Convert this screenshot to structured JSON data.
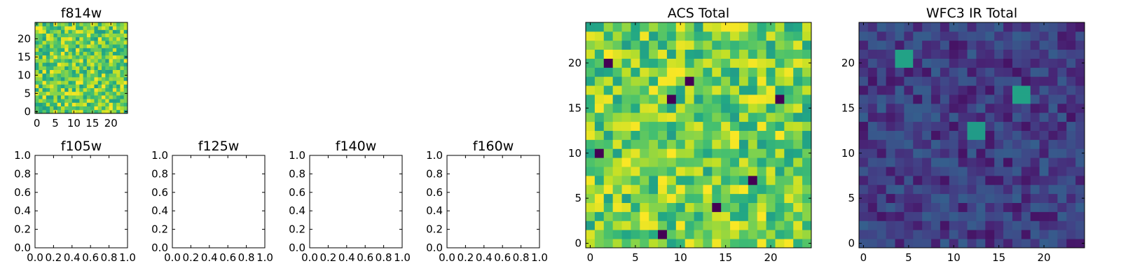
{
  "chart_data": [
    {
      "type": "heatmap",
      "title": "f814w",
      "rows": 25,
      "cols": 25,
      "colormap": "viridis",
      "xticks": [
        0,
        5,
        10,
        15,
        20
      ],
      "yticks": [
        0,
        5,
        10,
        15,
        20
      ],
      "pattern": "noise",
      "value_range": [
        0.55,
        1.0
      ]
    },
    {
      "type": "heatmap",
      "title": "f105w",
      "empty": true,
      "xticks": [
        "0.0",
        "0.2",
        "0.4",
        "0.6",
        "0.8",
        "1.0"
      ],
      "yticks": [
        "0.0",
        "0.2",
        "0.4",
        "0.6",
        "0.8",
        "1.0"
      ]
    },
    {
      "type": "heatmap",
      "title": "f125w",
      "empty": true,
      "xticks": [
        "0.0",
        "0.2",
        "0.4",
        "0.6",
        "0.8",
        "1.0"
      ],
      "yticks": [
        "0.0",
        "0.2",
        "0.4",
        "0.6",
        "0.8",
        "1.0"
      ]
    },
    {
      "type": "heatmap",
      "title": "f140w",
      "empty": true,
      "xticks": [
        "0.0",
        "0.2",
        "0.4",
        "0.6",
        "0.8",
        "1.0"
      ],
      "yticks": [
        "0.0",
        "0.2",
        "0.4",
        "0.6",
        "0.8",
        "1.0"
      ]
    },
    {
      "type": "heatmap",
      "title": "f160w",
      "empty": true,
      "xticks": [
        "0.0",
        "0.2",
        "0.4",
        "0.6",
        "0.8",
        "1.0"
      ],
      "yticks": [
        "0.0",
        "0.2",
        "0.4",
        "0.6",
        "0.8",
        "1.0"
      ]
    },
    {
      "type": "heatmap",
      "title": "ACS Total",
      "rows": 25,
      "cols": 25,
      "colormap": "viridis",
      "xticks": [
        0,
        5,
        10,
        15,
        20
      ],
      "yticks": [
        0,
        5,
        10,
        15,
        20
      ],
      "pattern": "noise",
      "value_range": [
        0.55,
        1.0
      ],
      "low_pixels": [
        [
          2,
          20
        ],
        [
          9,
          16
        ],
        [
          21,
          16
        ],
        [
          1,
          10
        ],
        [
          8,
          1
        ],
        [
          18,
          7
        ],
        [
          11,
          18
        ],
        [
          14,
          4
        ]
      ]
    },
    {
      "type": "heatmap",
      "title": "WFC3 IR Total",
      "rows": 25,
      "cols": 25,
      "colormap": "viridis",
      "xticks": [
        0,
        5,
        10,
        15,
        20
      ],
      "yticks": [
        0,
        5,
        10,
        15,
        20
      ],
      "pattern": "noise",
      "value_range": [
        0.05,
        0.3
      ],
      "sources": [
        {
          "x": 4.5,
          "y": 20.5,
          "peak": 1.0
        },
        {
          "x": 17.5,
          "y": 16.5,
          "peak": 1.0
        },
        {
          "x": 12.5,
          "y": 12.5,
          "peak": 0.95
        }
      ]
    }
  ]
}
